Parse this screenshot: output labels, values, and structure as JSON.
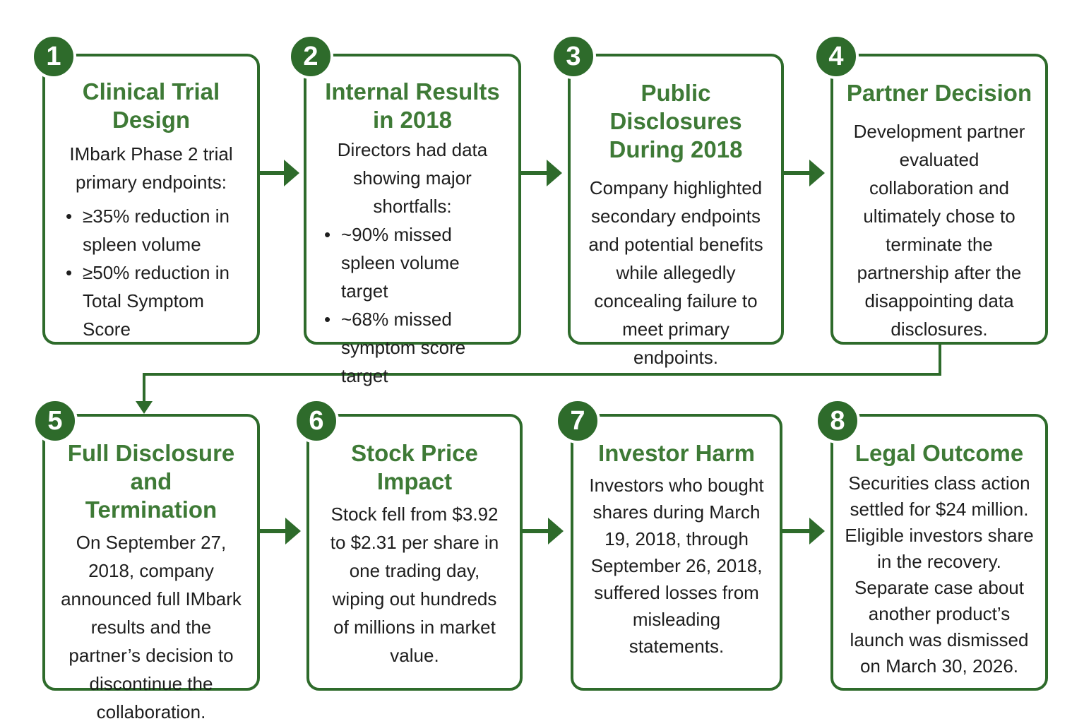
{
  "steps": [
    {
      "number": "1",
      "title": "Clinical Trial Design",
      "text": "IMbark Phase 2 trial primary endpoints:",
      "bullets": [
        "≥35% reduction in spleen volume",
        "≥50% reduction in Total Symptom Score"
      ]
    },
    {
      "number": "2",
      "title": "Internal Results in 2018",
      "text": "Directors had data showing major shortfalls:",
      "bullets": [
        "~90% missed spleen volume target",
        "~68% missed symptom score target"
      ]
    },
    {
      "number": "3",
      "title": "Public Disclosures During 2018",
      "text": "Company highlighted secondary endpoints and potential benefits while allegedly concealing failure to meet primary endpoints."
    },
    {
      "number": "4",
      "title": "Partner Decision",
      "text": "Development partner evaluated collaboration and ultimately chose to terminate the partnership after the disappointing data disclosures."
    },
    {
      "number": "5",
      "title": "Full Disclosure and Termination",
      "text": "On September 27, 2018, company announced full IMbark results and the partner’s decision to discontinue the collaboration."
    },
    {
      "number": "6",
      "title": "Stock Price Impact",
      "text": "Stock fell from $3.92 to $2.31 per share in one trading day, wiping out hundreds of millions in market value."
    },
    {
      "number": "7",
      "title": "Investor Harm",
      "text": "Investors who bought shares during March 19, 2018, through September 26, 2018, suffered losses from misleading statements."
    },
    {
      "number": "8",
      "title": "Legal Outcome",
      "text": "Securities class action settled for $24 million. Eligible investors share in the recovery. Separate case about another product’s launch was dismissed on March 30, 2026."
    }
  ],
  "colors": {
    "accent": "#2e6b2b",
    "title": "#3e7a36",
    "text": "#1e1e1e"
  }
}
